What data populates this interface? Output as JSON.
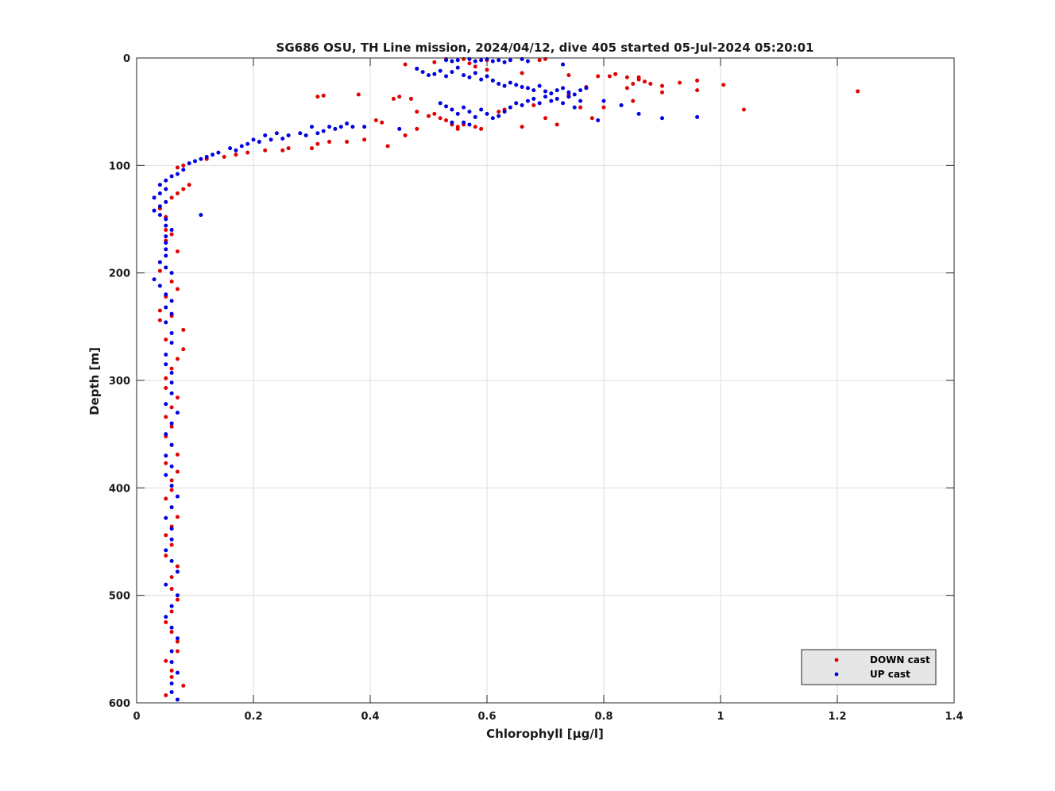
{
  "chart_data": {
    "type": "scatter",
    "title": "SG686 OSU, TH Line mission, 2024/04/12, dive 405 started 05-Jul-2024 05:20:01",
    "xlabel": "Chlorophyll [μg/l]",
    "ylabel": "Depth [m]",
    "xlim": [
      0,
      1.4
    ],
    "ylim": [
      0,
      600
    ],
    "y_reversed": true,
    "grid": true,
    "legend_position": "bottom-right",
    "xticks": [
      "0",
      "0.2",
      "0.4",
      "0.6",
      "0.8",
      "1",
      "1.2",
      "1.4"
    ],
    "yticks": [
      "0",
      "100",
      "200",
      "300",
      "400",
      "500",
      "600"
    ],
    "series": [
      {
        "name": "DOWN cast",
        "color": "#e00000",
        "points": [
          [
            0.53,
            1
          ],
          [
            0.56,
            1
          ],
          [
            0.6,
            2
          ],
          [
            0.66,
            1
          ],
          [
            0.69,
            2
          ],
          [
            0.7,
            1
          ],
          [
            0.51,
            4
          ],
          [
            0.57,
            5
          ],
          [
            0.58,
            8
          ],
          [
            0.6,
            11
          ],
          [
            0.66,
            14
          ],
          [
            0.46,
            6
          ],
          [
            0.48,
            10
          ],
          [
            0.74,
            16
          ],
          [
            0.77,
            27
          ],
          [
            0.79,
            17
          ],
          [
            0.81,
            17
          ],
          [
            0.82,
            15
          ],
          [
            0.84,
            18
          ],
          [
            0.85,
            24
          ],
          [
            0.86,
            20
          ],
          [
            0.87,
            22
          ],
          [
            0.88,
            24
          ],
          [
            0.86,
            18
          ],
          [
            0.9,
            26
          ],
          [
            0.93,
            23
          ],
          [
            0.96,
            21
          ],
          [
            1.005,
            25
          ],
          [
            1.235,
            31
          ],
          [
            0.96,
            30
          ],
          [
            0.9,
            32
          ],
          [
            0.84,
            28
          ],
          [
            0.74,
            34
          ],
          [
            0.76,
            46
          ],
          [
            0.78,
            56
          ],
          [
            0.72,
            62
          ],
          [
            0.66,
            64
          ],
          [
            0.62,
            50
          ],
          [
            0.59,
            66
          ],
          [
            0.55,
            64
          ],
          [
            0.53,
            58
          ],
          [
            0.5,
            54
          ],
          [
            0.48,
            66
          ],
          [
            0.46,
            72
          ],
          [
            0.43,
            82
          ],
          [
            0.38,
            34
          ],
          [
            0.32,
            35
          ],
          [
            0.31,
            36
          ],
          [
            0.44,
            38
          ],
          [
            0.45,
            36
          ],
          [
            0.47,
            38
          ],
          [
            0.48,
            50
          ],
          [
            0.51,
            52
          ],
          [
            0.52,
            56
          ],
          [
            0.54,
            62
          ],
          [
            0.55,
            66
          ],
          [
            0.56,
            62
          ],
          [
            0.58,
            64
          ],
          [
            0.63,
            48
          ],
          [
            0.68,
            44
          ],
          [
            0.7,
            56
          ],
          [
            0.74,
            36
          ],
          [
            0.8,
            46
          ],
          [
            0.85,
            40
          ],
          [
            1.04,
            48
          ],
          [
            0.41,
            58
          ],
          [
            0.42,
            60
          ],
          [
            0.39,
            76
          ],
          [
            0.36,
            78
          ],
          [
            0.33,
            78
          ],
          [
            0.31,
            80
          ],
          [
            0.3,
            84
          ],
          [
            0.26,
            84
          ],
          [
            0.25,
            86
          ],
          [
            0.22,
            86
          ],
          [
            0.19,
            88
          ],
          [
            0.17,
            90
          ],
          [
            0.15,
            92
          ],
          [
            0.12,
            94
          ],
          [
            0.08,
            100
          ],
          [
            0.07,
            102
          ],
          [
            0.09,
            118
          ],
          [
            0.08,
            122
          ],
          [
            0.07,
            126
          ],
          [
            0.06,
            130
          ],
          [
            0.04,
            140
          ],
          [
            0.05,
            148
          ],
          [
            0.05,
            160
          ],
          [
            0.06,
            164
          ],
          [
            0.05,
            170
          ],
          [
            0.07,
            180
          ],
          [
            0.04,
            190
          ],
          [
            0.04,
            198
          ],
          [
            0.06,
            208
          ],
          [
            0.07,
            215
          ],
          [
            0.05,
            222
          ],
          [
            0.04,
            235
          ],
          [
            0.06,
            240
          ],
          [
            0.04,
            244
          ],
          [
            0.08,
            253
          ],
          [
            0.05,
            262
          ],
          [
            0.08,
            271
          ],
          [
            0.07,
            280
          ],
          [
            0.06,
            289
          ],
          [
            0.05,
            298
          ],
          [
            0.05,
            307
          ],
          [
            0.07,
            316
          ],
          [
            0.06,
            325
          ],
          [
            0.05,
            334
          ],
          [
            0.06,
            343
          ],
          [
            0.05,
            352
          ],
          [
            0.06,
            360
          ],
          [
            0.07,
            369
          ],
          [
            0.05,
            377
          ],
          [
            0.07,
            385
          ],
          [
            0.06,
            393
          ],
          [
            0.06,
            402
          ],
          [
            0.05,
            410
          ],
          [
            0.06,
            418
          ],
          [
            0.07,
            427
          ],
          [
            0.06,
            436
          ],
          [
            0.05,
            444
          ],
          [
            0.06,
            453
          ],
          [
            0.05,
            463
          ],
          [
            0.07,
            473
          ],
          [
            0.06,
            483
          ],
          [
            0.06,
            494
          ],
          [
            0.07,
            504
          ],
          [
            0.06,
            515
          ],
          [
            0.05,
            525
          ],
          [
            0.06,
            534
          ],
          [
            0.07,
            543
          ],
          [
            0.07,
            552
          ],
          [
            0.05,
            561
          ],
          [
            0.06,
            570
          ],
          [
            0.06,
            576
          ],
          [
            0.08,
            584
          ],
          [
            0.05,
            593
          ]
        ]
      },
      {
        "name": "UP cast",
        "color": "#0000e0",
        "points": [
          [
            0.53,
            2
          ],
          [
            0.54,
            3
          ],
          [
            0.55,
            2
          ],
          [
            0.57,
            1
          ],
          [
            0.58,
            3
          ],
          [
            0.59,
            2
          ],
          [
            0.6,
            1
          ],
          [
            0.61,
            3
          ],
          [
            0.62,
            2
          ],
          [
            0.63,
            4
          ],
          [
            0.64,
            2
          ],
          [
            0.66,
            1
          ],
          [
            0.67,
            3
          ],
          [
            0.48,
            10
          ],
          [
            0.49,
            13
          ],
          [
            0.5,
            16
          ],
          [
            0.51,
            15
          ],
          [
            0.52,
            12
          ],
          [
            0.53,
            17
          ],
          [
            0.54,
            13
          ],
          [
            0.55,
            9
          ],
          [
            0.56,
            16
          ],
          [
            0.57,
            18
          ],
          [
            0.58,
            14
          ],
          [
            0.59,
            20
          ],
          [
            0.6,
            17
          ],
          [
            0.61,
            21
          ],
          [
            0.62,
            24
          ],
          [
            0.63,
            26
          ],
          [
            0.64,
            23
          ],
          [
            0.65,
            25
          ],
          [
            0.66,
            27
          ],
          [
            0.67,
            28
          ],
          [
            0.68,
            30
          ],
          [
            0.69,
            26
          ],
          [
            0.7,
            31
          ],
          [
            0.71,
            33
          ],
          [
            0.72,
            30
          ],
          [
            0.73,
            28
          ],
          [
            0.74,
            32
          ],
          [
            0.75,
            34
          ],
          [
            0.76,
            30
          ],
          [
            0.77,
            28
          ],
          [
            0.73,
            6
          ],
          [
            0.8,
            40
          ],
          [
            0.83,
            44
          ],
          [
            0.86,
            52
          ],
          [
            0.9,
            56
          ],
          [
            0.96,
            55
          ],
          [
            0.53,
            45
          ],
          [
            0.54,
            48
          ],
          [
            0.55,
            52
          ],
          [
            0.56,
            46
          ],
          [
            0.57,
            50
          ],
          [
            0.58,
            55
          ],
          [
            0.59,
            48
          ],
          [
            0.6,
            52
          ],
          [
            0.61,
            56
          ],
          [
            0.62,
            54
          ],
          [
            0.63,
            50
          ],
          [
            0.64,
            46
          ],
          [
            0.65,
            42
          ],
          [
            0.66,
            44
          ],
          [
            0.67,
            40
          ],
          [
            0.68,
            38
          ],
          [
            0.69,
            42
          ],
          [
            0.7,
            36
          ],
          [
            0.71,
            40
          ],
          [
            0.72,
            38
          ],
          [
            0.73,
            42
          ],
          [
            0.74,
            36
          ],
          [
            0.75,
            46
          ],
          [
            0.76,
            40
          ],
          [
            0.79,
            58
          ],
          [
            0.56,
            60
          ],
          [
            0.57,
            62
          ],
          [
            0.54,
            60
          ],
          [
            0.52,
            42
          ],
          [
            0.45,
            66
          ],
          [
            0.39,
            64
          ],
          [
            0.37,
            64
          ],
          [
            0.36,
            61
          ],
          [
            0.35,
            64
          ],
          [
            0.34,
            66
          ],
          [
            0.33,
            64
          ],
          [
            0.32,
            68
          ],
          [
            0.31,
            70
          ],
          [
            0.3,
            64
          ],
          [
            0.29,
            72
          ],
          [
            0.28,
            70
          ],
          [
            0.26,
            72
          ],
          [
            0.25,
            75
          ],
          [
            0.24,
            70
          ],
          [
            0.23,
            76
          ],
          [
            0.22,
            72
          ],
          [
            0.21,
            78
          ],
          [
            0.2,
            76
          ],
          [
            0.19,
            80
          ],
          [
            0.18,
            82
          ],
          [
            0.17,
            86
          ],
          [
            0.16,
            84
          ],
          [
            0.14,
            88
          ],
          [
            0.13,
            90
          ],
          [
            0.12,
            92
          ],
          [
            0.11,
            94
          ],
          [
            0.1,
            96
          ],
          [
            0.09,
            98
          ],
          [
            0.08,
            104
          ],
          [
            0.07,
            108
          ],
          [
            0.06,
            110
          ],
          [
            0.05,
            114
          ],
          [
            0.04,
            118
          ],
          [
            0.05,
            122
          ],
          [
            0.04,
            126
          ],
          [
            0.03,
            130
          ],
          [
            0.05,
            134
          ],
          [
            0.04,
            138
          ],
          [
            0.03,
            142
          ],
          [
            0.04,
            146
          ],
          [
            0.05,
            150
          ],
          [
            0.11,
            146
          ],
          [
            0.05,
            156
          ],
          [
            0.06,
            160
          ],
          [
            0.05,
            166
          ],
          [
            0.05,
            172
          ],
          [
            0.05,
            178
          ],
          [
            0.05,
            184
          ],
          [
            0.04,
            190
          ],
          [
            0.05,
            195
          ],
          [
            0.06,
            200
          ],
          [
            0.03,
            206
          ],
          [
            0.04,
            212
          ],
          [
            0.05,
            220
          ],
          [
            0.06,
            226
          ],
          [
            0.05,
            232
          ],
          [
            0.06,
            238
          ],
          [
            0.05,
            246
          ],
          [
            0.06,
            256
          ],
          [
            0.06,
            265
          ],
          [
            0.05,
            276
          ],
          [
            0.05,
            285
          ],
          [
            0.06,
            293
          ],
          [
            0.06,
            302
          ],
          [
            0.06,
            312
          ],
          [
            0.05,
            322
          ],
          [
            0.07,
            330
          ],
          [
            0.06,
            340
          ],
          [
            0.05,
            350
          ],
          [
            0.06,
            360
          ],
          [
            0.05,
            370
          ],
          [
            0.06,
            380
          ],
          [
            0.05,
            388
          ],
          [
            0.06,
            398
          ],
          [
            0.07,
            408
          ],
          [
            0.06,
            418
          ],
          [
            0.05,
            428
          ],
          [
            0.06,
            438
          ],
          [
            0.06,
            448
          ],
          [
            0.05,
            458
          ],
          [
            0.06,
            468
          ],
          [
            0.07,
            478
          ],
          [
            0.05,
            490
          ],
          [
            0.07,
            500
          ],
          [
            0.06,
            510
          ],
          [
            0.05,
            520
          ],
          [
            0.06,
            530
          ],
          [
            0.07,
            540
          ],
          [
            0.06,
            552
          ],
          [
            0.06,
            562
          ],
          [
            0.07,
            572
          ],
          [
            0.06,
            582
          ],
          [
            0.06,
            590
          ],
          [
            0.07,
            597
          ]
        ]
      }
    ]
  }
}
